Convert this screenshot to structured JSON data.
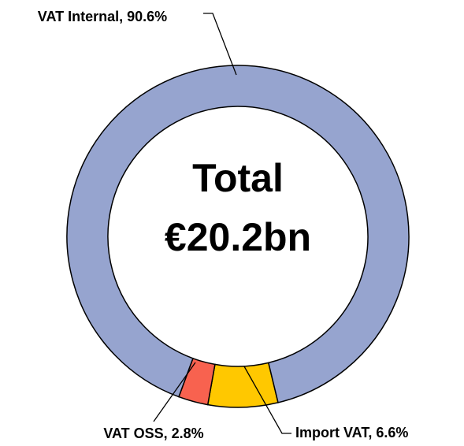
{
  "chart_data": {
    "type": "donut",
    "center_text": [
      "Total",
      "€20.2bn"
    ],
    "values": [
      6.6,
      2.8,
      90.6
    ],
    "value_labels": [
      "Import VAT, 6.6%",
      "VAT OSS, 2.8%",
      "VAT Internal, 90.6%"
    ],
    "colors": [
      "#ffc800",
      "#f8624f",
      "#96a4cf"
    ]
  }
}
